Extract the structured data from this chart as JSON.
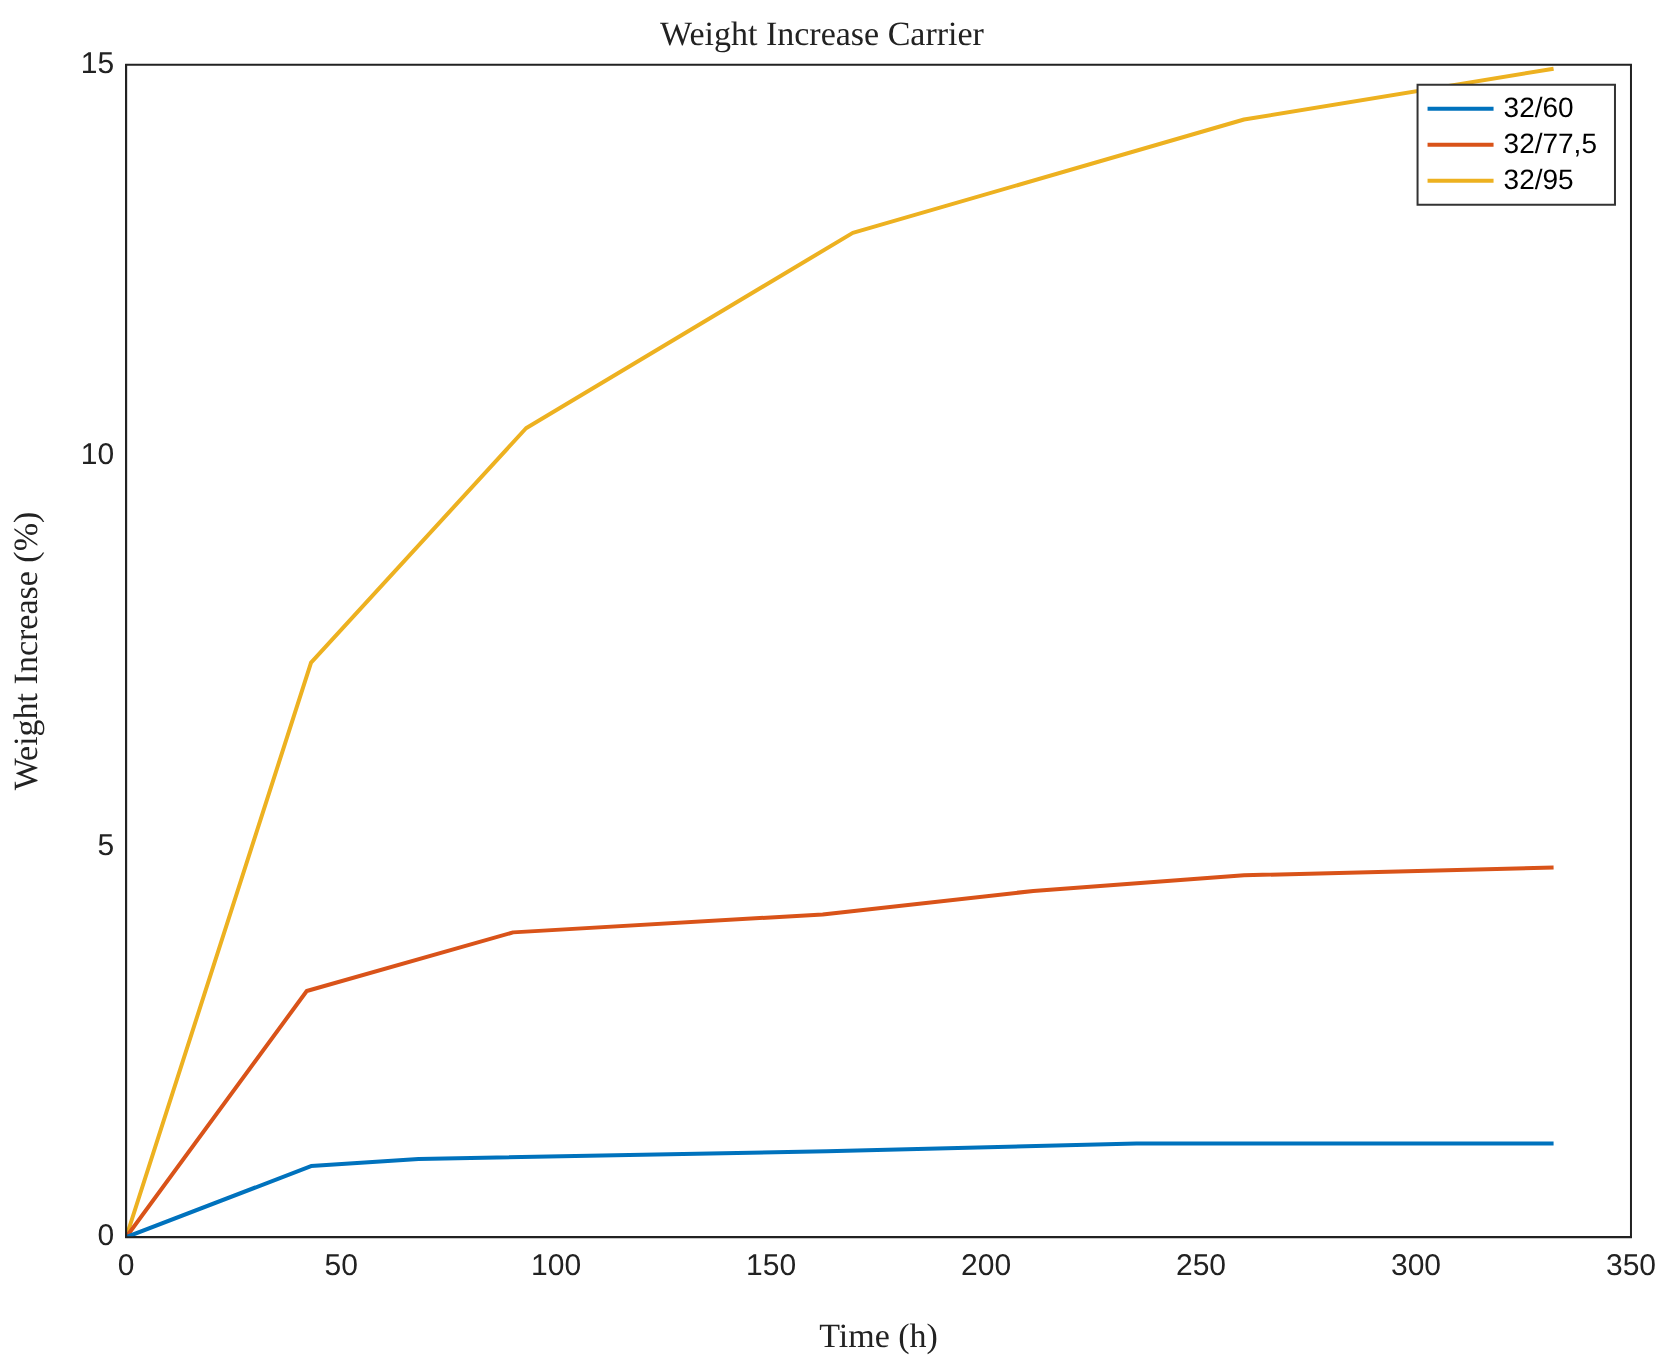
{
  "chart_data": {
    "type": "line",
    "title": "Weight Increase Carrier",
    "xlabel": "Time (h)",
    "ylabel": "Weight Increase (%)",
    "xlim": [
      0,
      350
    ],
    "xticks": [
      0,
      50,
      100,
      150,
      200,
      250,
      300,
      350
    ],
    "ylim": [
      0,
      15
    ],
    "yticks": [
      0,
      5,
      10,
      15
    ],
    "grid": false,
    "legend": "top right",
    "marker": "none",
    "series": [
      {
        "name": "32/60",
        "color": "#0072bd",
        "x": [
          0,
          43,
          68,
          163,
          235,
          332
        ],
        "values": [
          0,
          0.91,
          1.0,
          1.1,
          1.2,
          1.2
        ]
      },
      {
        "name": "32/77,5",
        "color": "#d95319",
        "x": [
          0,
          42,
          90,
          162,
          211,
          260,
          332
        ],
        "values": [
          0,
          3.15,
          3.9,
          4.13,
          4.43,
          4.63,
          4.73
        ]
      },
      {
        "name": "32/95",
        "color": "#edb120",
        "x": [
          0,
          43,
          93,
          169,
          260,
          332
        ],
        "values": [
          0,
          7.35,
          10.35,
          12.85,
          14.3,
          14.95
        ]
      }
    ]
  }
}
